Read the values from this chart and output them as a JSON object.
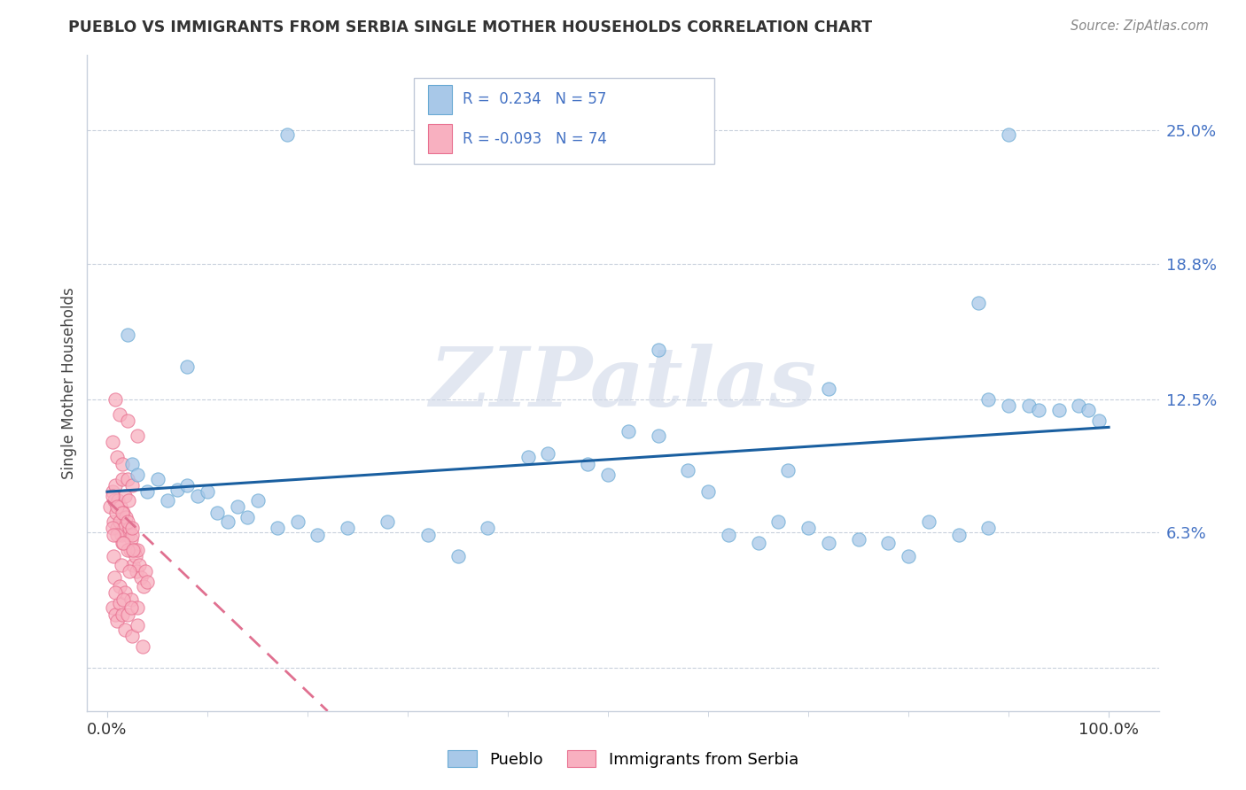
{
  "title": "PUEBLO VS IMMIGRANTS FROM SERBIA SINGLE MOTHER HOUSEHOLDS CORRELATION CHART",
  "source": "Source: ZipAtlas.com",
  "ylabel": "Single Mother Households",
  "xlim": [
    -0.02,
    1.05
  ],
  "ylim": [
    -0.02,
    0.285
  ],
  "ytick_values": [
    0.0,
    0.063,
    0.125,
    0.188,
    0.25
  ],
  "ytick_labels": [
    "",
    "6.3%",
    "12.5%",
    "18.8%",
    "25.0%"
  ],
  "xtick_values": [
    0.0,
    1.0
  ],
  "xtick_labels": [
    "0.0%",
    "100.0%"
  ],
  "pueblo_color": "#a8c8e8",
  "pueblo_edge_color": "#6aaad4",
  "serbia_color": "#f8b0c0",
  "serbia_edge_color": "#e87090",
  "pueblo_line_color": "#1a5fa0",
  "serbia_line_color": "#e07090",
  "r_n_color": "#4472c4",
  "watermark_color": "#d0d8e8",
  "legend_label1": "R =  0.234   N = 57",
  "legend_label2": "R = -0.093   N = 74",
  "pueblo_trend": [
    0.0,
    1.0,
    0.082,
    0.112
  ],
  "serbia_trend": [
    0.0,
    0.22,
    0.078,
    -0.02
  ],
  "pueblo_x": [
    0.02,
    0.025,
    0.03,
    0.04,
    0.05,
    0.06,
    0.07,
    0.08,
    0.09,
    0.1,
    0.11,
    0.12,
    0.13,
    0.14,
    0.15,
    0.17,
    0.19,
    0.21,
    0.24,
    0.28,
    0.32,
    0.38,
    0.42,
    0.44,
    0.48,
    0.5,
    0.52,
    0.55,
    0.58,
    0.6,
    0.62,
    0.65,
    0.67,
    0.68,
    0.7,
    0.72,
    0.75,
    0.78,
    0.8,
    0.82,
    0.85,
    0.87,
    0.88,
    0.9,
    0.92,
    0.93,
    0.95,
    0.97,
    0.98,
    0.99,
    0.08,
    0.18,
    0.35,
    0.55,
    0.72,
    0.88,
    0.9
  ],
  "pueblo_y": [
    0.155,
    0.095,
    0.09,
    0.082,
    0.088,
    0.078,
    0.083,
    0.085,
    0.08,
    0.082,
    0.072,
    0.068,
    0.075,
    0.07,
    0.078,
    0.065,
    0.068,
    0.062,
    0.065,
    0.068,
    0.062,
    0.065,
    0.098,
    0.1,
    0.095,
    0.09,
    0.11,
    0.108,
    0.092,
    0.082,
    0.062,
    0.058,
    0.068,
    0.092,
    0.065,
    0.058,
    0.06,
    0.058,
    0.052,
    0.068,
    0.062,
    0.17,
    0.125,
    0.122,
    0.122,
    0.12,
    0.12,
    0.122,
    0.12,
    0.115,
    0.14,
    0.248,
    0.052,
    0.148,
    0.13,
    0.065,
    0.248
  ],
  "serbia_x": [
    0.003,
    0.005,
    0.006,
    0.007,
    0.008,
    0.009,
    0.01,
    0.011,
    0.012,
    0.013,
    0.014,
    0.015,
    0.016,
    0.017,
    0.018,
    0.019,
    0.02,
    0.021,
    0.022,
    0.023,
    0.024,
    0.025,
    0.026,
    0.027,
    0.028,
    0.029,
    0.03,
    0.032,
    0.034,
    0.036,
    0.038,
    0.04,
    0.005,
    0.008,
    0.01,
    0.012,
    0.015,
    0.018,
    0.02,
    0.025,
    0.03,
    0.035,
    0.005,
    0.01,
    0.015,
    0.02,
    0.025,
    0.005,
    0.01,
    0.015,
    0.02,
    0.008,
    0.012,
    0.02,
    0.03,
    0.005,
    0.01,
    0.015,
    0.02,
    0.025,
    0.007,
    0.012,
    0.018,
    0.024,
    0.03,
    0.006,
    0.014,
    0.022,
    0.006,
    0.016,
    0.026,
    0.008,
    0.016,
    0.024
  ],
  "serbia_y": [
    0.075,
    0.082,
    0.068,
    0.078,
    0.085,
    0.072,
    0.065,
    0.078,
    0.068,
    0.075,
    0.062,
    0.088,
    0.072,
    0.065,
    0.08,
    0.07,
    0.062,
    0.078,
    0.065,
    0.055,
    0.06,
    0.062,
    0.048,
    0.055,
    0.052,
    0.045,
    0.055,
    0.048,
    0.042,
    0.038,
    0.045,
    0.04,
    0.028,
    0.025,
    0.022,
    0.03,
    0.025,
    0.018,
    0.025,
    0.015,
    0.02,
    0.01,
    0.105,
    0.098,
    0.095,
    0.088,
    0.085,
    0.065,
    0.062,
    0.058,
    0.055,
    0.125,
    0.118,
    0.115,
    0.108,
    0.08,
    0.075,
    0.072,
    0.068,
    0.065,
    0.042,
    0.038,
    0.035,
    0.032,
    0.028,
    0.052,
    0.048,
    0.045,
    0.062,
    0.058,
    0.055,
    0.035,
    0.032,
    0.028
  ]
}
